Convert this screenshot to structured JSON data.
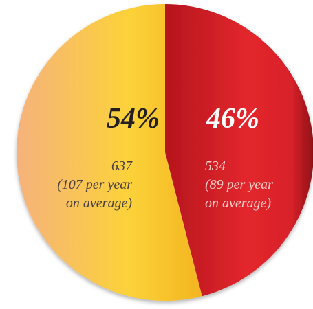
{
  "chart_data": {
    "type": "pie",
    "values": [
      46,
      54
    ],
    "value_labels": [
      "46%",
      "54%"
    ],
    "colors": [
      "#e3262d",
      "#fcd23a"
    ],
    "details": [
      [
        "534",
        "(89 per year",
        "on average)"
      ],
      [
        "637",
        "(107 per year",
        "on average)"
      ]
    ]
  }
}
